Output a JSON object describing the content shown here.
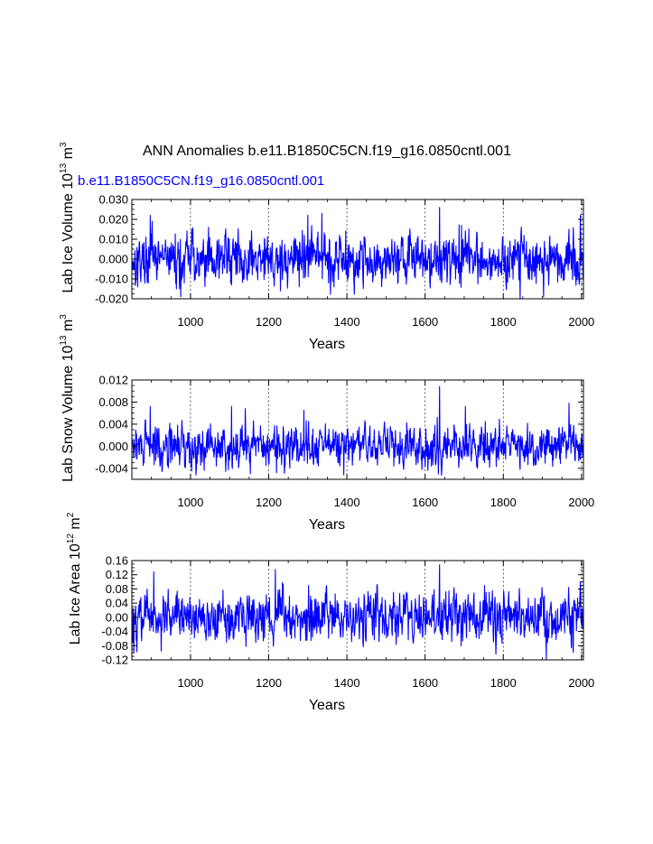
{
  "figure": {
    "title": "ANN Anomalies b.e11.B1850C5CN.f19_g16.0850cntl.001",
    "case_label": "b.e11.B1850C5CN.f19_g16.0850cntl.001",
    "case_label_color": "#0000ff",
    "line_color": "#0000ff",
    "vline_years": [
      1000,
      1200,
      1400,
      1600,
      1800,
      2000
    ]
  },
  "chart_data": [
    {
      "type": "line",
      "ylabel_main": "Lab Ice Volume 10",
      "ylabel_exp": "13",
      "ylabel_unit": " m",
      "ylabel_unit_exp": "3",
      "xlabel": "Years",
      "xlim": [
        850,
        2005
      ],
      "ylim": [
        -0.02,
        0.03
      ],
      "xticks": [
        1000,
        1200,
        1400,
        1600,
        1800,
        2000
      ],
      "xtick_labels": [
        "1000",
        "1200",
        "1400",
        "1600",
        "1800",
        "2000"
      ],
      "yticks": [
        -0.02,
        -0.01,
        0.0,
        0.01,
        0.02,
        0.03
      ],
      "ytick_labels": [
        "-0.020",
        "-0.010",
        "0.000",
        "0.010",
        "0.020",
        "0.030"
      ],
      "seed": 17,
      "sigma": 0.0062,
      "spikes": [
        [
          897,
          0.022
        ],
        [
          1003,
          0.015
        ],
        [
          1046,
          0.016
        ],
        [
          1300,
          0.022
        ],
        [
          1336,
          0.023
        ],
        [
          1637,
          0.026
        ],
        [
          1693,
          0.017
        ],
        [
          1968,
          0.015
        ],
        [
          1997,
          0.022
        ],
        [
          975,
          -0.019
        ],
        [
          1230,
          -0.016
        ],
        [
          1843,
          -0.02
        ],
        [
          1903,
          -0.019
        ]
      ]
    },
    {
      "type": "line",
      "ylabel_main": "Lab Snow Volume 10",
      "ylabel_exp": "13",
      "ylabel_unit": " m",
      "ylabel_unit_exp": "3",
      "xlabel": "Years",
      "xlim": [
        850,
        2005
      ],
      "ylim": [
        -0.006,
        0.012
      ],
      "xticks": [
        1000,
        1200,
        1400,
        1600,
        1800,
        2000
      ],
      "xtick_labels": [
        "1000",
        "1200",
        "1400",
        "1600",
        "1800",
        "2000"
      ],
      "yticks": [
        -0.004,
        0.0,
        0.004,
        0.008,
        0.012
      ],
      "ytick_labels": [
        "-0.004",
        "0.000",
        "0.004",
        "0.008",
        "0.012"
      ],
      "seed": 29,
      "sigma": 0.00185,
      "spikes": [
        [
          897,
          0.0072
        ],
        [
          1105,
          0.0072
        ],
        [
          1140,
          0.0068
        ],
        [
          1290,
          0.0065
        ],
        [
          1637,
          0.0108
        ],
        [
          1703,
          0.0072
        ],
        [
          1968,
          0.0078
        ],
        [
          1220,
          -0.0048
        ],
        [
          1392,
          -0.0052
        ],
        [
          1545,
          -0.0042
        ],
        [
          1843,
          -0.0042
        ]
      ]
    },
    {
      "type": "line",
      "ylabel_main": "Lab Ice Area 10",
      "ylabel_exp": "12",
      "ylabel_unit": " m",
      "ylabel_unit_exp": "2",
      "xlabel": "Years",
      "xlim": [
        850,
        2005
      ],
      "ylim": [
        -0.12,
        0.16
      ],
      "xticks": [
        1000,
        1200,
        1400,
        1600,
        1800,
        2000
      ],
      "xtick_labels": [
        "1000",
        "1200",
        "1400",
        "1600",
        "1800",
        "2000"
      ],
      "yticks": [
        -0.12,
        -0.08,
        -0.04,
        0.0,
        0.04,
        0.08,
        0.12,
        0.16
      ],
      "ytick_labels": [
        "-0.12",
        "-0.08",
        "-0.04",
        "0.00",
        "0.04",
        "0.08",
        "0.12",
        "0.16"
      ],
      "seed": 43,
      "sigma": 0.033,
      "spikes": [
        [
          906,
          0.128
        ],
        [
          1217,
          0.135
        ],
        [
          1302,
          0.09
        ],
        [
          1637,
          0.148
        ],
        [
          1752,
          0.09
        ],
        [
          1997,
          0.1
        ],
        [
          855,
          -0.1
        ],
        [
          925,
          -0.095
        ],
        [
          1092,
          -0.07
        ],
        [
          1910,
          -0.125
        ],
        [
          1978,
          -0.08
        ]
      ]
    }
  ]
}
